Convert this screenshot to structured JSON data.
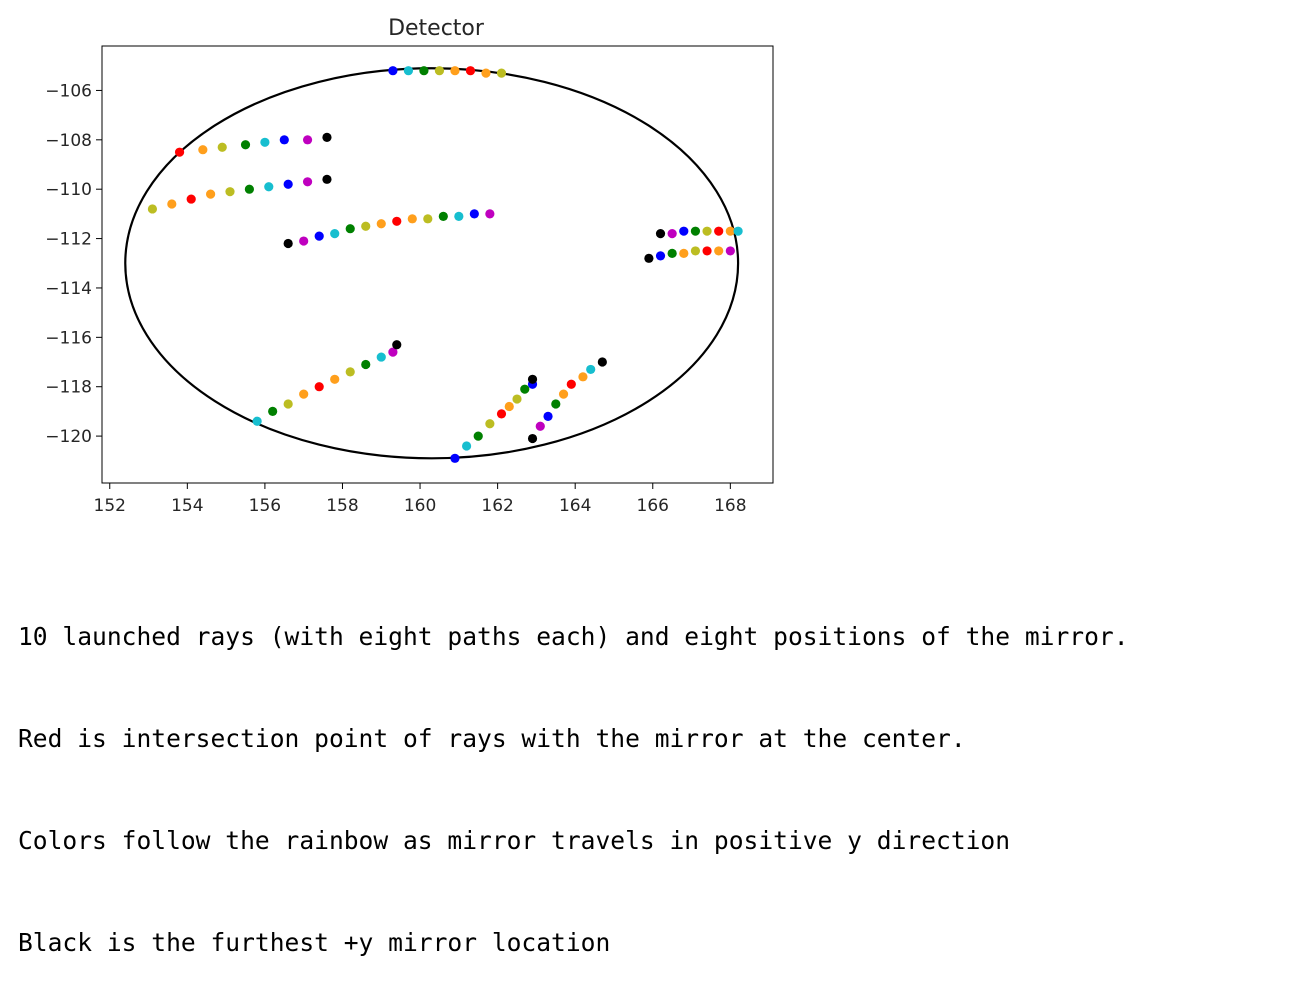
{
  "chart_data": {
    "type": "scatter",
    "title": "Detector",
    "xlabel": "",
    "ylabel": "",
    "xlim": [
      151.8,
      169.1
    ],
    "ylim": [
      -121.9,
      -104.2
    ],
    "xticks": [
      152,
      154,
      156,
      158,
      160,
      162,
      164,
      166,
      168
    ],
    "yticks": [
      -106,
      -108,
      -110,
      -112,
      -114,
      -116,
      -118,
      -120
    ],
    "grid": false,
    "legend": "none",
    "detector_ellipse": {
      "center": [
        160.3,
        -113.0
      ],
      "semi_x": 7.9,
      "semi_y": 7.9,
      "color": "#000000"
    },
    "colors": [
      "#ff0000",
      "#ff9f1c",
      "#bcbd22",
      "#008000",
      "#17becf",
      "#0000ff",
      "#bf00bf",
      "#000000"
    ],
    "color_names": [
      "red",
      "orange",
      "olive",
      "green",
      "cyan",
      "blue",
      "magenta",
      "black"
    ],
    "rays": [
      {
        "points": [
          [
            153.8,
            -108.5
          ],
          [
            154.4,
            -108.4
          ],
          [
            154.9,
            -108.3
          ],
          [
            155.5,
            -108.2
          ],
          [
            156.0,
            -108.1
          ],
          [
            156.5,
            -108.0
          ],
          [
            157.1,
            -108.0
          ],
          [
            157.6,
            -107.9
          ]
        ],
        "color_order": [
          0,
          1,
          2,
          3,
          4,
          5,
          6,
          7
        ]
      },
      {
        "points": [
          [
            153.1,
            -110.8
          ],
          [
            153.6,
            -110.6
          ],
          [
            154.1,
            -110.4
          ],
          [
            154.6,
            -110.2
          ],
          [
            155.1,
            -110.1
          ],
          [
            155.6,
            -110.0
          ],
          [
            156.1,
            -109.9
          ],
          [
            156.6,
            -109.8
          ],
          [
            157.1,
            -109.7
          ],
          [
            157.6,
            -109.6
          ]
        ],
        "color_order": [
          2,
          1,
          0,
          1,
          2,
          3,
          4,
          5,
          6,
          7
        ]
      },
      {
        "points": [
          [
            156.6,
            -112.2
          ],
          [
            157.0,
            -112.1
          ],
          [
            157.4,
            -111.9
          ],
          [
            157.8,
            -111.8
          ],
          [
            158.2,
            -111.6
          ],
          [
            158.6,
            -111.5
          ],
          [
            159.0,
            -111.4
          ],
          [
            159.4,
            -111.3
          ],
          [
            159.8,
            -111.2
          ],
          [
            160.2,
            -111.2
          ],
          [
            160.6,
            -111.1
          ],
          [
            161.0,
            -111.1
          ],
          [
            161.4,
            -111.0
          ],
          [
            161.8,
            -111.0
          ]
        ],
        "color_order": [
          7,
          6,
          5,
          4,
          3,
          2,
          1,
          0,
          1,
          2,
          3,
          4,
          5,
          6
        ]
      },
      {
        "points": [
          [
            159.3,
            -105.2
          ],
          [
            159.7,
            -105.2
          ],
          [
            160.1,
            -105.2
          ],
          [
            160.5,
            -105.2
          ],
          [
            160.9,
            -105.2
          ],
          [
            161.3,
            -105.2
          ],
          [
            161.7,
            -105.3
          ],
          [
            162.1,
            -105.3
          ]
        ],
        "color_order": [
          5,
          4,
          3,
          2,
          1,
          0,
          1,
          2
        ]
      },
      {
        "points": [
          [
            166.2,
            -111.8
          ],
          [
            166.5,
            -111.8
          ],
          [
            166.8,
            -111.7
          ],
          [
            167.1,
            -111.7
          ],
          [
            167.4,
            -111.7
          ],
          [
            167.7,
            -111.7
          ],
          [
            168.0,
            -111.7
          ],
          [
            168.2,
            -111.7
          ]
        ],
        "color_order": [
          7,
          6,
          5,
          3,
          2,
          0,
          1,
          4
        ]
      },
      {
        "points": [
          [
            165.9,
            -112.8
          ],
          [
            166.2,
            -112.7
          ],
          [
            166.5,
            -112.6
          ],
          [
            166.8,
            -112.6
          ],
          [
            167.1,
            -112.5
          ],
          [
            167.4,
            -112.5
          ],
          [
            167.7,
            -112.5
          ],
          [
            168.0,
            -112.5
          ]
        ],
        "color_order": [
          7,
          5,
          3,
          1,
          2,
          0,
          1,
          6
        ]
      },
      {
        "points": [
          [
            155.8,
            -119.4
          ],
          [
            156.2,
            -119.0
          ],
          [
            156.6,
            -118.7
          ],
          [
            157.0,
            -118.3
          ],
          [
            157.4,
            -118.0
          ],
          [
            157.8,
            -117.7
          ],
          [
            158.2,
            -117.4
          ],
          [
            158.6,
            -117.1
          ],
          [
            159.0,
            -116.8
          ],
          [
            159.3,
            -116.6
          ],
          [
            159.4,
            -116.3
          ]
        ],
        "color_order": [
          4,
          3,
          2,
          1,
          0,
          1,
          2,
          3,
          4,
          6,
          7
        ]
      },
      {
        "points": [
          [
            160.9,
            -120.9
          ],
          [
            161.2,
            -120.4
          ],
          [
            161.5,
            -120.0
          ],
          [
            161.8,
            -119.5
          ],
          [
            162.1,
            -119.1
          ],
          [
            162.3,
            -118.8
          ],
          [
            162.5,
            -118.5
          ],
          [
            162.7,
            -118.1
          ],
          [
            162.9,
            -117.9
          ],
          [
            162.9,
            -117.7
          ]
        ],
        "color_order": [
          5,
          4,
          3,
          2,
          0,
          1,
          2,
          3,
          5,
          7
        ]
      },
      {
        "points": [
          [
            162.9,
            -120.1
          ],
          [
            163.1,
            -119.6
          ],
          [
            163.3,
            -119.2
          ],
          [
            163.5,
            -118.7
          ],
          [
            163.7,
            -118.3
          ],
          [
            163.9,
            -117.9
          ],
          [
            164.2,
            -117.6
          ],
          [
            164.4,
            -117.3
          ],
          [
            164.7,
            -117.0
          ]
        ],
        "color_order": [
          7,
          6,
          5,
          3,
          1,
          0,
          1,
          4,
          7
        ]
      }
    ]
  },
  "caption": {
    "line1": "10 launched rays (with eight paths each) and eight positions of the mirror.",
    "line2": "Red is intersection point of rays with the mirror at the center.",
    "line3": "Colors follow the rainbow as mirror travels in positive y direction",
    "line4": "Black is the furthest +y mirror location"
  }
}
